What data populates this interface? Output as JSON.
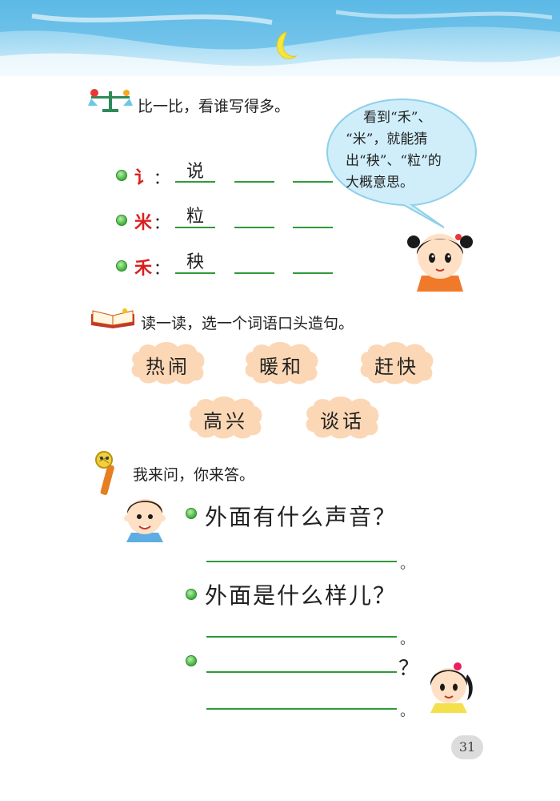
{
  "section1": {
    "title": "比一比，看谁写得多。",
    "rows": [
      {
        "radical": "讠",
        "colon": "：",
        "example": "说"
      },
      {
        "radical": "米",
        "colon": "：",
        "example": "粒"
      },
      {
        "radical": "禾",
        "colon": "：",
        "example": "秧"
      }
    ],
    "bubble": {
      "line1": "看到“禾”、",
      "line2": "“米”，就能猜",
      "line3": "出“秧”、“粒”的",
      "line4": "大概意思。"
    }
  },
  "section2": {
    "title": "读一读，选一个词语口头造句。",
    "words": [
      "热闹",
      "暖和",
      "赶快",
      "高兴",
      "谈话"
    ]
  },
  "section3": {
    "title": "我来问，你来答。",
    "q1": "外面有什么声音？",
    "q2": "外面是什么样儿？",
    "q3_end": "？",
    "period": "。"
  },
  "page_number": "31",
  "colors": {
    "sky": "#a9def3",
    "cloud": "#fbd7b5",
    "blank": "#2e9a3a",
    "radical": "#d9201f"
  }
}
